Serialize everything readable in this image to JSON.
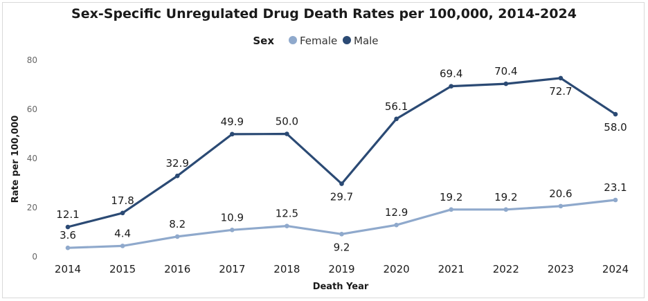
{
  "chart_data": {
    "type": "line",
    "title": "Sex-Specific Unregulated Drug Death Rates per 100,000, 2014-2024",
    "xlabel": "Death Year",
    "ylabel": "Rate per 100,000",
    "ylim": [
      0,
      80
    ],
    "yticks": [
      0,
      20,
      40,
      60,
      80
    ],
    "legend_title": "Sex",
    "categories": [
      "2014",
      "2015",
      "2016",
      "2017",
      "2018",
      "2019",
      "2020",
      "2021",
      "2022",
      "2023",
      "2024"
    ],
    "series": [
      {
        "name": "Female",
        "color": "#8fa9cc",
        "values": [
          3.6,
          4.4,
          8.2,
          10.9,
          12.5,
          9.2,
          12.9,
          19.2,
          19.2,
          20.6,
          23.1
        ],
        "labels": [
          "3.6",
          "4.4",
          "8.2",
          "10.9",
          "12.5",
          "9.2",
          "12.9",
          "19.2",
          "19.2",
          "20.6",
          "23.1"
        ],
        "label_pos": [
          "above",
          "above",
          "above",
          "above",
          "above",
          "below",
          "above",
          "above",
          "above",
          "above",
          "above"
        ]
      },
      {
        "name": "Male",
        "color": "#2b4a74",
        "values": [
          12.1,
          17.8,
          32.9,
          49.9,
          50.0,
          29.7,
          56.1,
          69.4,
          70.4,
          72.7,
          58.0
        ],
        "labels": [
          "12.1",
          "17.8",
          "32.9",
          "49.9",
          "50.0",
          "29.7",
          "56.1",
          "69.4",
          "70.4",
          "72.7",
          "58.0"
        ],
        "label_pos": [
          "above",
          "above",
          "above",
          "above",
          "above",
          "below",
          "above",
          "above",
          "above",
          "below",
          "below"
        ]
      }
    ]
  }
}
